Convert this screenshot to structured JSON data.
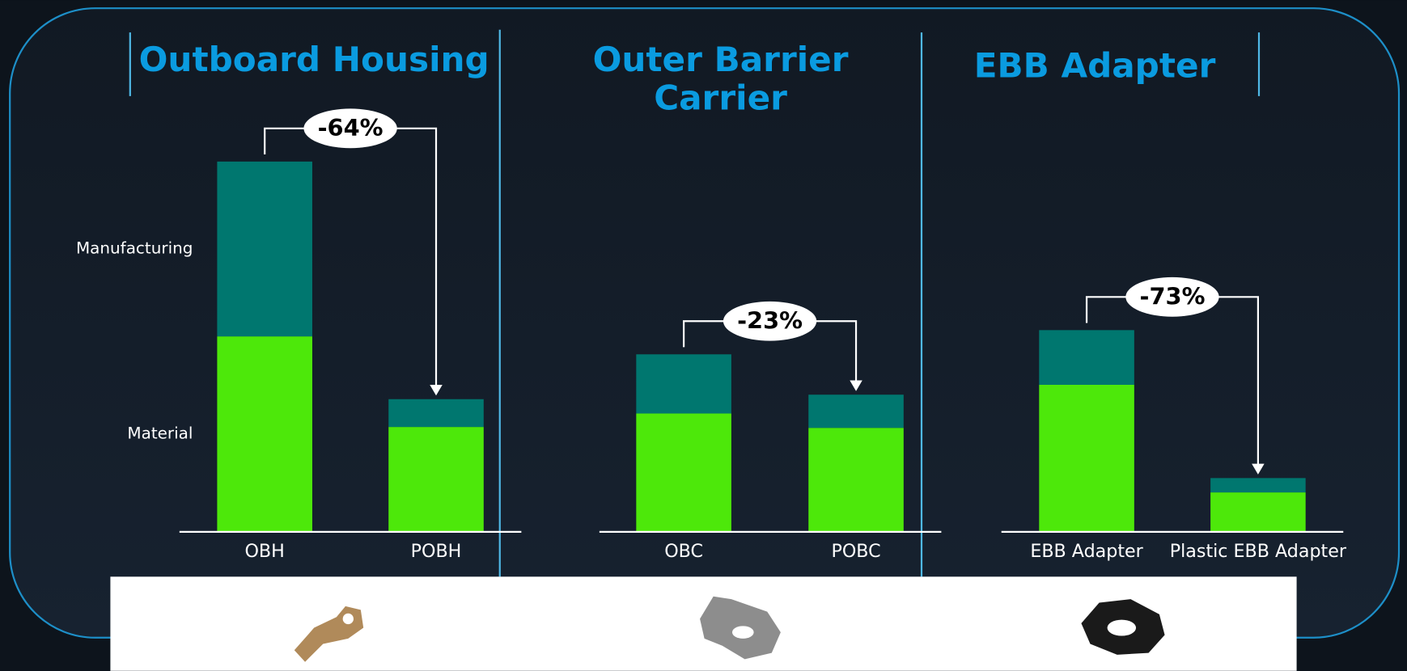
{
  "legend": [
    {
      "name": "Material",
      "color": "#4de80a"
    },
    {
      "name": "Manufacturing",
      "color": "#00776f"
    }
  ],
  "chart_data": [
    {
      "type": "bar",
      "title": "Outboard Housing",
      "categories": [
        "OBH",
        "POBH"
      ],
      "series": [
        {
          "values": [
            218,
            117
          ]
        },
        {
          "values": [
            195,
            31
          ]
        }
      ],
      "ylim": [
        0,
        450
      ],
      "annotation": "-64%"
    },
    {
      "type": "bar",
      "title": "Outer Barrier Carrier",
      "categories": [
        "OBC",
        "POBC"
      ],
      "series": [
        {
          "values": [
            132,
            116
          ]
        },
        {
          "values": [
            66,
            37
          ]
        }
      ],
      "ylim": [
        0,
        450
      ],
      "annotation": "-23%"
    },
    {
      "type": "bar",
      "title": "EBB Adapter",
      "categories": [
        "EBB Adapter",
        "Plastic EBB Adapter"
      ],
      "series": [
        {
          "values": [
            164,
            44
          ]
        },
        {
          "values": [
            61,
            16
          ]
        }
      ],
      "ylim": [
        0,
        450
      ],
      "annotation": "-73%"
    }
  ]
}
